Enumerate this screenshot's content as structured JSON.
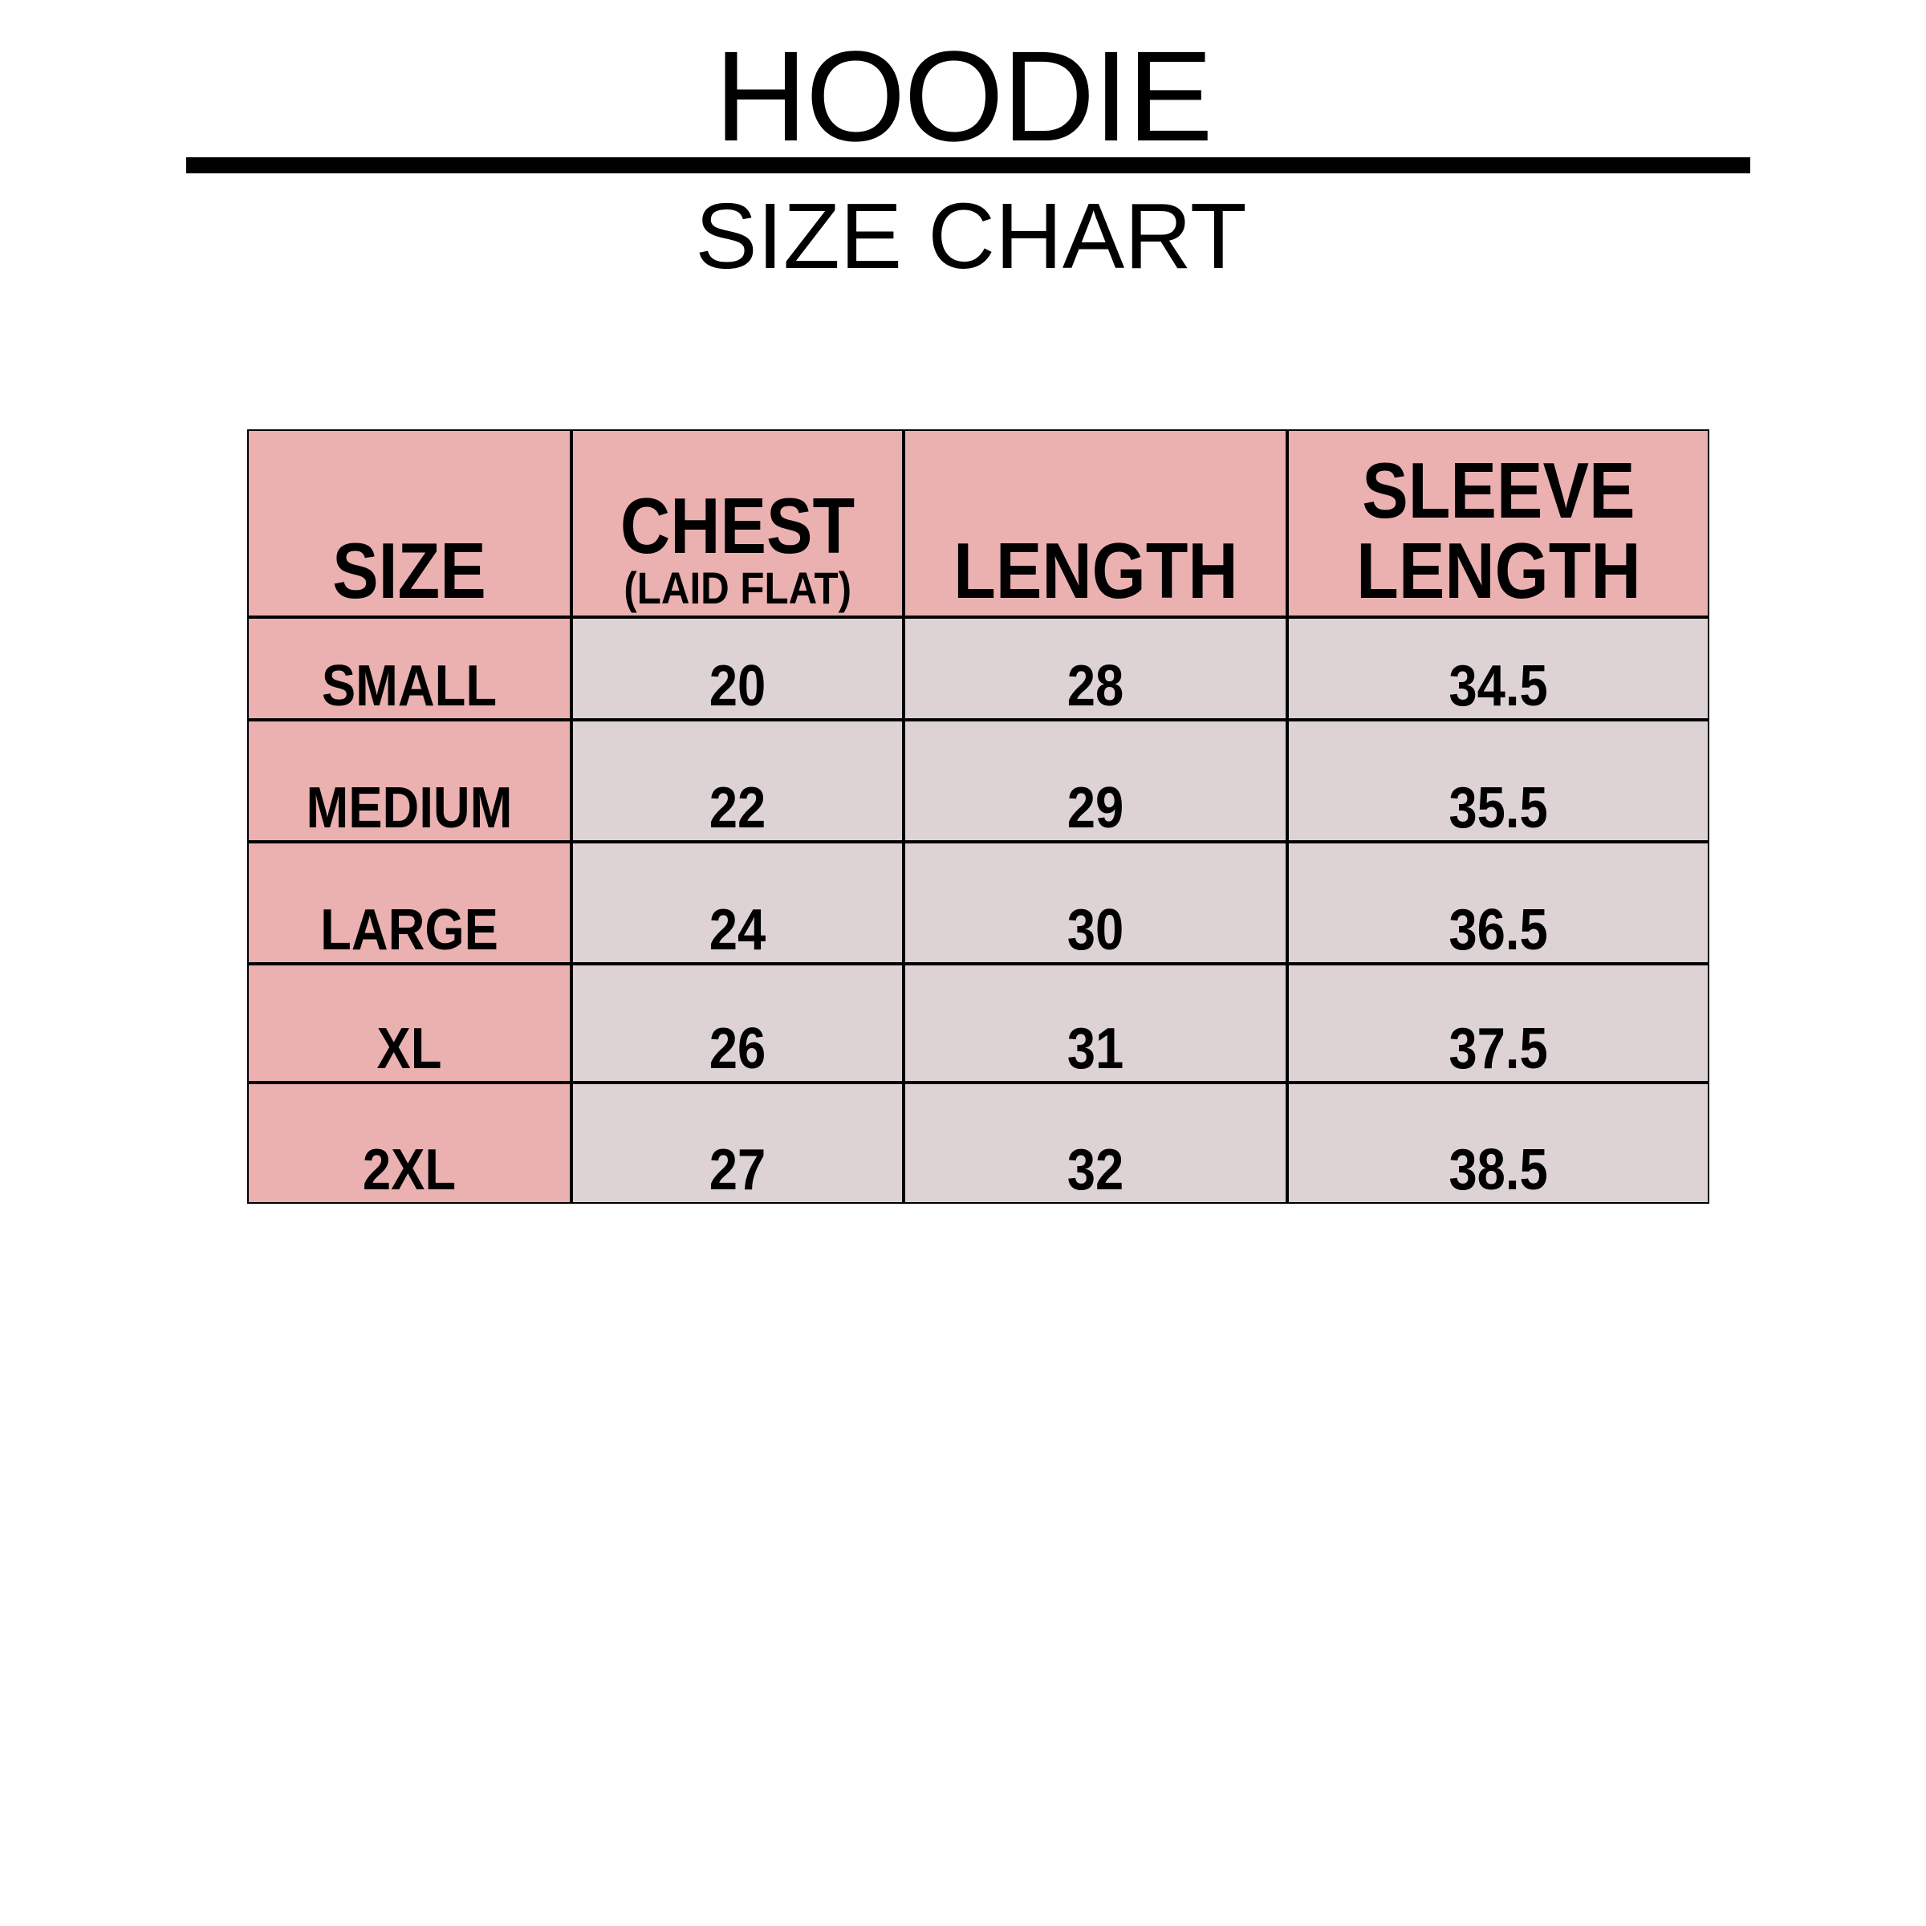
{
  "title": "HOODIE",
  "subtitle": "SIZE CHART",
  "colors": {
    "header_bg": "#ebb0b0",
    "size_col_bg": "#ebb0b0",
    "body_bg": "#ddd3d5",
    "border": "#000000"
  },
  "table": {
    "headers": [
      {
        "label": "SIZE",
        "sub": ""
      },
      {
        "label": "CHEST",
        "sub": "(LAID FLAT)"
      },
      {
        "label": "LENGTH",
        "sub": ""
      },
      {
        "label": "SLEEVE LENGTH",
        "sub": ""
      }
    ],
    "rows": [
      [
        "SMALL",
        "20",
        "28",
        "34.5"
      ],
      [
        "MEDIUM",
        "22",
        "29",
        "35.5"
      ],
      [
        "LARGE",
        "24",
        "30",
        "36.5"
      ],
      [
        "XL",
        "26",
        "31",
        "37.5"
      ],
      [
        "2XL",
        "27",
        "32",
        "38.5"
      ]
    ]
  }
}
